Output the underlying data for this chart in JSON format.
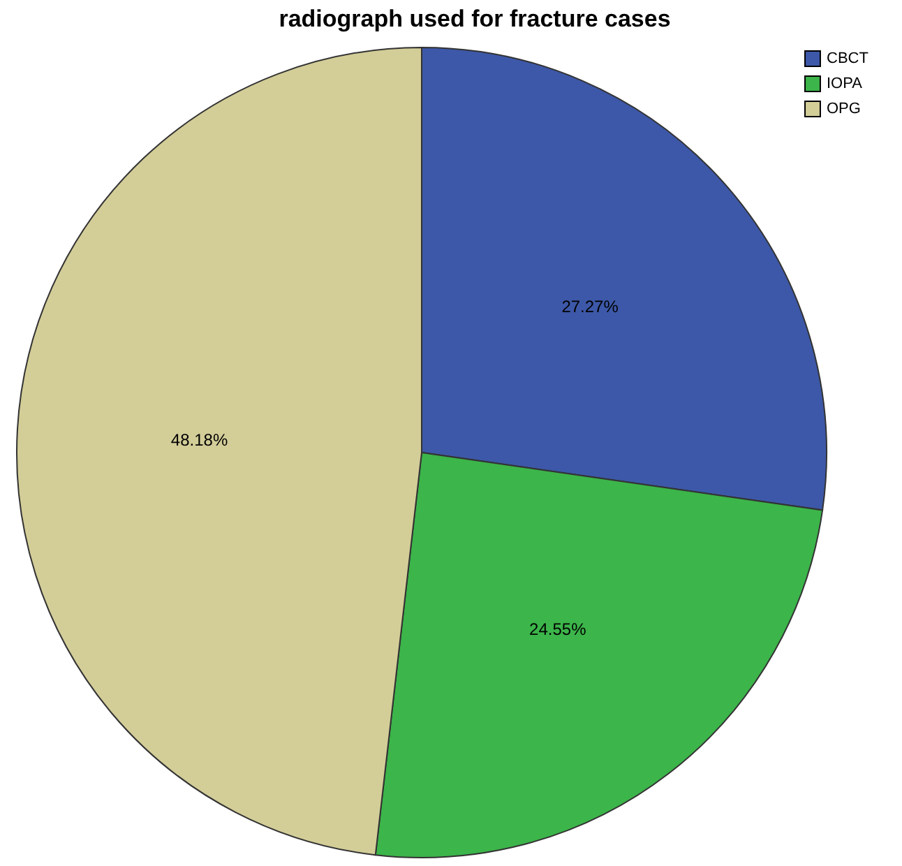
{
  "chart_data": {
    "type": "pie",
    "title": "radiograph used for fracture cases",
    "categories": [
      "CBCT",
      "IOPA",
      "OPG"
    ],
    "values": [
      27.27,
      24.55,
      48.18
    ],
    "colors": [
      "#3d58a8",
      "#3cb54a",
      "#d3cd98"
    ],
    "value_labels": [
      "27.27%",
      "24.55%",
      "48.18%"
    ],
    "legend": "top right"
  }
}
